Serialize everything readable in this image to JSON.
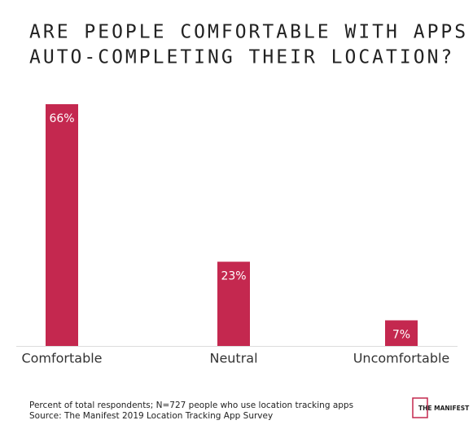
{
  "chart_data": {
    "type": "bar",
    "title": [
      "ARE PEOPLE COMFORTABLE WITH APPS",
      "AUTO-COMPLETING THEIR LOCATION?"
    ],
    "categories": [
      "Comfortable",
      "Neutral",
      "Uncomfortable"
    ],
    "values": [
      66,
      23,
      7
    ],
    "value_labels": [
      "66%",
      "23%",
      "7%"
    ],
    "color": "#c4284f",
    "notes": [
      "Percent of total respondents; N=727 people who use location tracking apps",
      "Source: The Manifest 2019 Location Tracking App Survey"
    ],
    "logo": "THE MANIFEST"
  }
}
